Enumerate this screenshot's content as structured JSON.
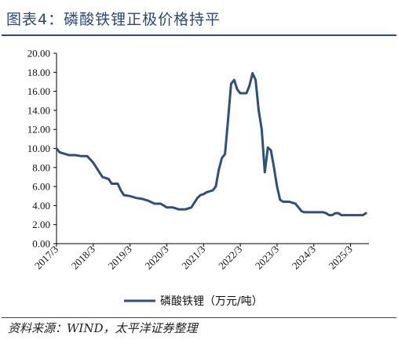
{
  "header": {
    "title": "图表4：磷酸铁锂正极价格持平"
  },
  "footer": {
    "source": "资料来源：WIND，太平洋证券整理"
  },
  "colors": {
    "accent": "#2b4a78",
    "series": "#2f4f7f"
  },
  "chart_data": {
    "type": "line",
    "title": "",
    "xlabel": "",
    "ylabel": "",
    "ylim": [
      0,
      20
    ],
    "yticks": [
      "0.00",
      "2.00",
      "4.00",
      "6.00",
      "8.00",
      "10.00",
      "12.00",
      "14.00",
      "16.00",
      "18.00",
      "20.00"
    ],
    "xticks": [
      "2017/3",
      "2018/3",
      "2019/3",
      "2020/3",
      "2021/3",
      "2022/3",
      "2023/3",
      "2024/3",
      "2025/3"
    ],
    "grid": false,
    "legend_position": "bottom-center",
    "series": [
      {
        "name": "磷酸铁锂（万元/吨）",
        "x": [
          "2017/3",
          "2017/4",
          "2017/5",
          "2017/7",
          "2017/9",
          "2017/11",
          "2018/1",
          "2018/3",
          "2018/4",
          "2018/5",
          "2018/6",
          "2018/7",
          "2018/8",
          "2018/9",
          "2018/10",
          "2018/11",
          "2018/12",
          "2019/1",
          "2019/3",
          "2019/4",
          "2019/5",
          "2019/7",
          "2019/9",
          "2019/11",
          "2020/1",
          "2020/3",
          "2020/5",
          "2020/7",
          "2020/9",
          "2020/11",
          "2021/1",
          "2021/2",
          "2021/3",
          "2021/4",
          "2021/5",
          "2021/6",
          "2021/7",
          "2021/8",
          "2021/9",
          "2021/10",
          "2021/11",
          "2021/12",
          "2022/1",
          "2022/2",
          "2022/3",
          "2022/4",
          "2022/5",
          "2022/6",
          "2022/7",
          "2022/8",
          "2022/9",
          "2022/10",
          "2022/11",
          "2022/12",
          "2023/1",
          "2023/2",
          "2023/3",
          "2023/4",
          "2023/5",
          "2023/6",
          "2023/7",
          "2023/8",
          "2023/9",
          "2023/10",
          "2023/11",
          "2023/12",
          "2024/1",
          "2024/2",
          "2024/3",
          "2024/4",
          "2024/5",
          "2024/6",
          "2024/7",
          "2024/8",
          "2024/9",
          "2024/10",
          "2024/11",
          "2024/12",
          "2025/1",
          "2025/3",
          "2025/5",
          "2025/6",
          "2025/7",
          "2025/8"
        ],
        "values": [
          10.0,
          9.6,
          9.5,
          9.3,
          9.3,
          9.2,
          9.2,
          8.5,
          8.0,
          7.5,
          7.0,
          6.9,
          6.8,
          6.3,
          6.3,
          6.3,
          5.6,
          5.1,
          5.0,
          4.9,
          4.8,
          4.7,
          4.5,
          4.2,
          4.2,
          3.8,
          3.8,
          3.6,
          3.6,
          3.8,
          4.8,
          5.1,
          5.2,
          5.4,
          5.5,
          5.6,
          6.0,
          7.8,
          9.0,
          9.4,
          13.0,
          16.8,
          17.2,
          16.2,
          15.8,
          15.8,
          15.8,
          16.6,
          17.9,
          17.2,
          14.0,
          12.0,
          7.5,
          10.1,
          9.8,
          8.0,
          6.0,
          4.6,
          4.4,
          4.4,
          4.4,
          4.3,
          4.2,
          3.8,
          3.4,
          3.3,
          3.3,
          3.3,
          3.3,
          3.3,
          3.3,
          3.3,
          3.2,
          3.0,
          3.0,
          3.2,
          3.2,
          3.0,
          3.0,
          3.0,
          3.0,
          3.0,
          3.0,
          3.2
        ]
      }
    ]
  }
}
